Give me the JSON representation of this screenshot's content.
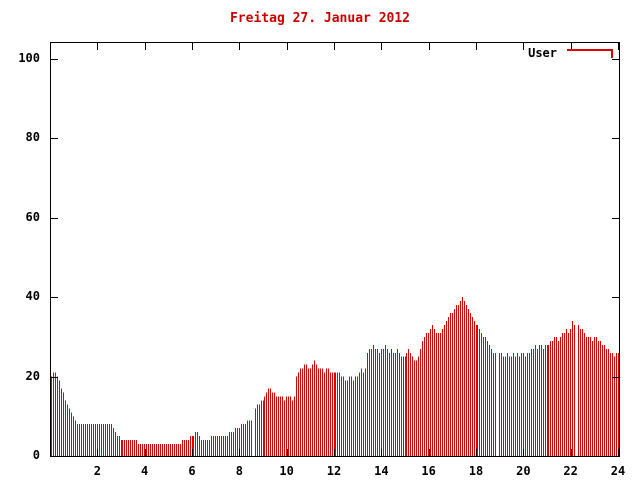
{
  "chart_data": {
    "type": "bar",
    "title": "Freitag 27. Januar 2012",
    "xlabel": "",
    "ylabel": "",
    "x_start_hour": 0,
    "x_end_hour": 24,
    "sample_interval_minutes": 5,
    "xticks": [
      2,
      4,
      6,
      8,
      10,
      12,
      14,
      16,
      18,
      20,
      22,
      24
    ],
    "yticks": [
      0,
      20,
      40,
      60,
      80,
      100
    ],
    "ylim": [
      0,
      104
    ],
    "grid": false,
    "legend_position": "top-right-inside",
    "series": [
      {
        "name": "User",
        "values": [
          20,
          21,
          21,
          20,
          19,
          17,
          16,
          14,
          13,
          12,
          11,
          10,
          9,
          8,
          8,
          8,
          8,
          8,
          8,
          8,
          8,
          8,
          8,
          8,
          8,
          8,
          8,
          8,
          8,
          8,
          8,
          7,
          6,
          5,
          5,
          4,
          4,
          4,
          4,
          4,
          4,
          4,
          4,
          4,
          3,
          3,
          3,
          3,
          3,
          3,
          3,
          3,
          3,
          3,
          3,
          3,
          3,
          3,
          3,
          3,
          3,
          3,
          3,
          3,
          3,
          3,
          4,
          4,
          4,
          4,
          5,
          5,
          5,
          6,
          6,
          5,
          4,
          4,
          4,
          4,
          4,
          5,
          5,
          5,
          5,
          5,
          5,
          5,
          5,
          5,
          6,
          6,
          6,
          7,
          7,
          7,
          8,
          8,
          8,
          9,
          9,
          9,
          0,
          12,
          13,
          13,
          14,
          14,
          15,
          16,
          17,
          17,
          16,
          16,
          15,
          15,
          15,
          15,
          14,
          15,
          15,
          15,
          14,
          15,
          20,
          21,
          22,
          22,
          23,
          23,
          22,
          22,
          23,
          24,
          23,
          22,
          22,
          22,
          21,
          22,
          22,
          21,
          21,
          21,
          21,
          21,
          21,
          20,
          20,
          19,
          19,
          20,
          20,
          19,
          20,
          20,
          21,
          22,
          21,
          22,
          26,
          27,
          27,
          28,
          27,
          27,
          26,
          27,
          27,
          28,
          27,
          26,
          27,
          26,
          26,
          27,
          26,
          25,
          25,
          25,
          26,
          27,
          26,
          25,
          24,
          24,
          25,
          27,
          29,
          30,
          31,
          31,
          32,
          33,
          32,
          31,
          31,
          31,
          32,
          33,
          34,
          35,
          36,
          36,
          37,
          38,
          38,
          39,
          40,
          39,
          38,
          37,
          36,
          35,
          34,
          33,
          33,
          32,
          31,
          30,
          30,
          29,
          28,
          27,
          26,
          26,
          0,
          26,
          26,
          25,
          25,
          26,
          25,
          25,
          26,
          25,
          26,
          25,
          26,
          26,
          25,
          26,
          26,
          27,
          27,
          28,
          27,
          28,
          28,
          27,
          28,
          28,
          28,
          29,
          29,
          30,
          30,
          29,
          30,
          31,
          31,
          32,
          31,
          32,
          34,
          33,
          0,
          33,
          32,
          32,
          31,
          30,
          30,
          30,
          29,
          30,
          30,
          29,
          29,
          28,
          28,
          27,
          27,
          26,
          26,
          25,
          26,
          26
        ]
      }
    ],
    "colors": {
      "bar": "#dd0000",
      "title": "#cc0000",
      "axis": "#000000",
      "legend_text": "#000000"
    }
  }
}
